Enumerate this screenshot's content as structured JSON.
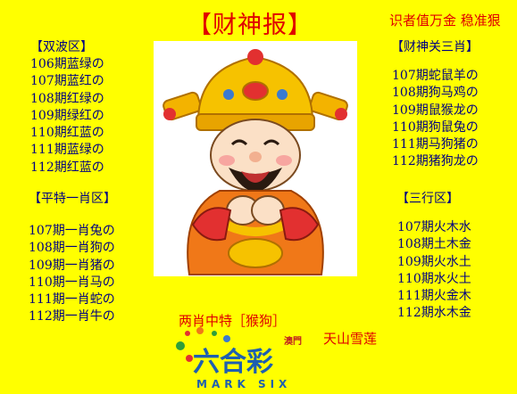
{
  "title": "【财神报】",
  "slogan": "识者值万金  稳准狠",
  "left_top": {
    "label": "【双波区】",
    "items": [
      "106期蓝绿の",
      "107期蓝红の",
      "108期红绿の",
      "109期绿红の",
      "110期红蓝の",
      "111期蓝绿の",
      "112期红蓝の"
    ]
  },
  "left_bottom": {
    "label": "【平特一肖区】",
    "items": [
      "107期一肖兔の",
      "108期一肖狗の",
      "109期一肖猪の",
      "110期一肖马の",
      "111期一肖蛇の",
      "112期一肖牛の"
    ]
  },
  "right_top": {
    "label": "【财神关三肖】",
    "items": [
      "107期蛇鼠羊の",
      "108期狗马鸡の",
      "109期鼠猴龙の",
      "110期狗鼠兔の",
      "111期马狗猪の",
      "112期猪狗龙の"
    ]
  },
  "right_bottom": {
    "label": "【三行区】",
    "items": [
      "107期火木水",
      "108期土木金",
      "109期火水土",
      "110期水火土",
      "111期火金木",
      "112期水木金"
    ]
  },
  "bottom": {
    "special": "两肖中特［猴狗］",
    "author": "天山雪莲"
  },
  "logo": {
    "small": "澳門",
    "main": "六合彩",
    "sub": "MARK SIX"
  },
  "colors": {
    "background": "#FFFF00",
    "accent_red": "#E00000",
    "text_navy": "#000080"
  }
}
